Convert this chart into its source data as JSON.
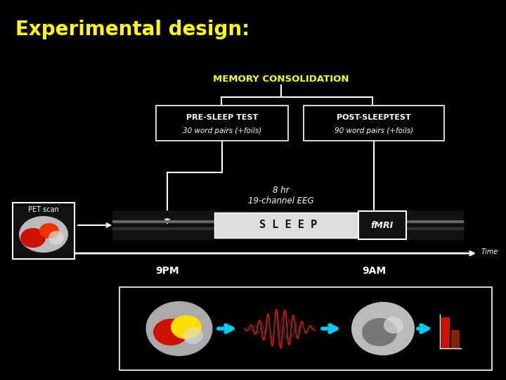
{
  "title": "Experimental design:",
  "title_color": "#FFFF00",
  "title_fontsize": 20,
  "bg_color": "#000000",
  "memory_consolidation_label": "MEMORY CONSOLIDATION",
  "memory_consolidation_color": "#FFFF00",
  "pre_sleep_label": "PRE-SLEEP TEST",
  "pre_sleep_sublabel": "30 word pairs (+foils)",
  "post_sleep_label": "POST-SLEEPTEST",
  "post_sleep_sublabel": "90 word pairs (+foils)",
  "sleep_label": "S L E E P",
  "fmri_label": "fMRI",
  "pet_label": "PET scan",
  "time_label": "Time",
  "time_9pm": "9PM",
  "time_9am": "9AM",
  "eeg_label": "8 hr\n19-channel EEG",
  "text_color": "#FFFFFF",
  "yellow_color": "#FFFF00",
  "timeline_dark": "#1a1a1a",
  "timeline_grad": "#555555",
  "sleep_text_color": "#000000",
  "cyan_arrow": "#00CCEE"
}
